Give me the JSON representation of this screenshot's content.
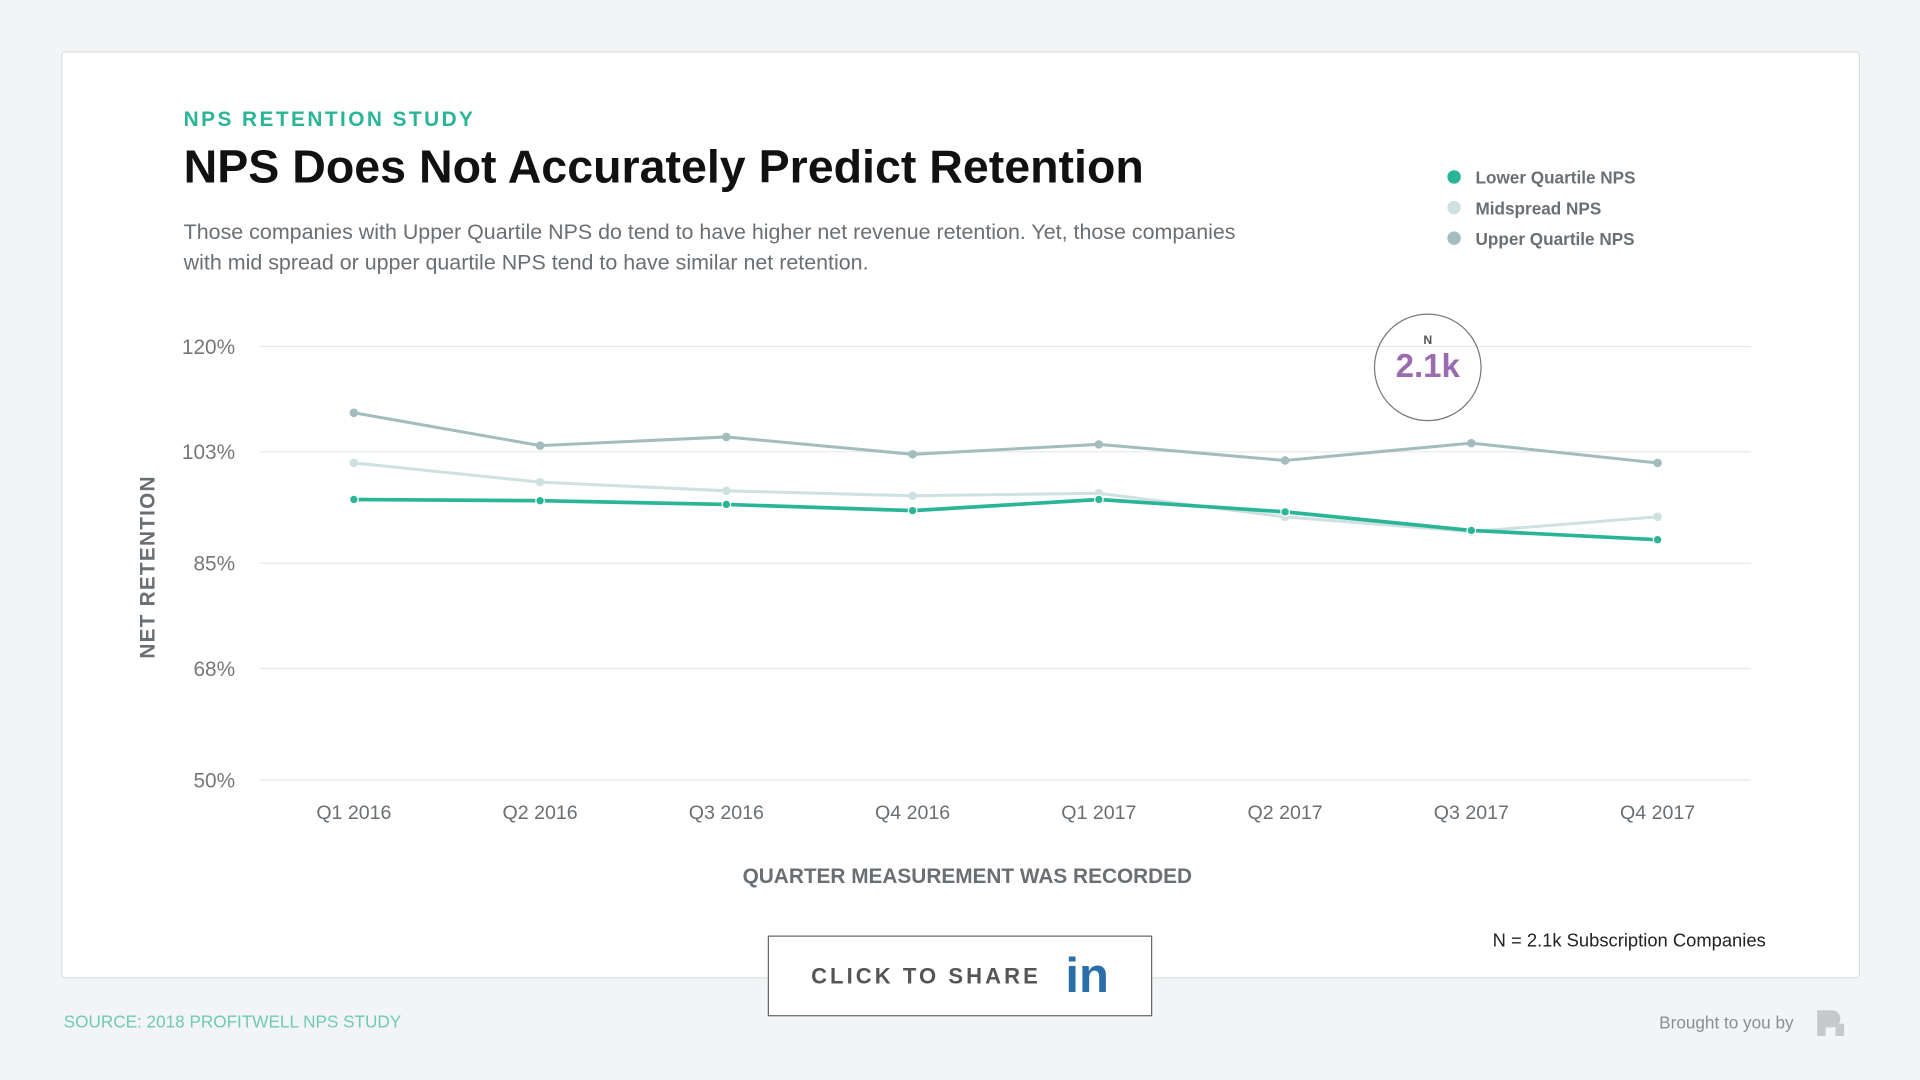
{
  "header": {
    "eyebrow": "NPS RETENTION STUDY",
    "title": "NPS Does Not Accurately Predict Retention",
    "subtitle": "Those companies with Upper Quartile NPS do tend to have higher net revenue retention. Yet, those companies with mid spread or upper quartile NPS tend to have similar net retention."
  },
  "badge": {
    "label": "N",
    "value": "2.1k"
  },
  "footer": {
    "share_label": "CLICK TO SHARE",
    "share_icon": "linkedin-icon",
    "note": "N = 2.1k Subscription Companies",
    "source": "SOURCE: 2018 PROFITWELL NPS STUDY",
    "brought": "Brought to you by",
    "logo": "profitwell-logo"
  },
  "chart_data": {
    "type": "line",
    "xlabel": "QUARTER MEASUREMENT WAS RECORDED",
    "ylabel": "NET RETENTION",
    "categories": [
      "Q1 2016",
      "Q2 2016",
      "Q3 2016",
      "Q4 2016",
      "Q1 2017",
      "Q2 2017",
      "Q3 2017",
      "Q4 2017"
    ],
    "ylim": [
      50,
      120
    ],
    "yticks": [
      50,
      68,
      85,
      103,
      120
    ],
    "ytick_labels": [
      "50%",
      "68%",
      "85%",
      "103%",
      "120%"
    ],
    "grid": true,
    "legend": "top-right",
    "series": [
      {
        "name": "Lower Quartile NPS",
        "color": "#2bb597",
        "values": [
          95.3,
          95.1,
          94.5,
          93.5,
          95.3,
          93.3,
          90.3,
          88.8
        ]
      },
      {
        "name": "Midspread NPS",
        "color": "#cfe0e1",
        "values": [
          101.2,
          98.1,
          96.7,
          95.9,
          96.3,
          92.5,
          90.1,
          92.5
        ]
      },
      {
        "name": "Upper Quartile NPS",
        "color": "#a3bcbd",
        "values": [
          109.3,
          104.0,
          105.4,
          102.6,
          104.2,
          101.6,
          104.4,
          101.2
        ]
      }
    ]
  }
}
